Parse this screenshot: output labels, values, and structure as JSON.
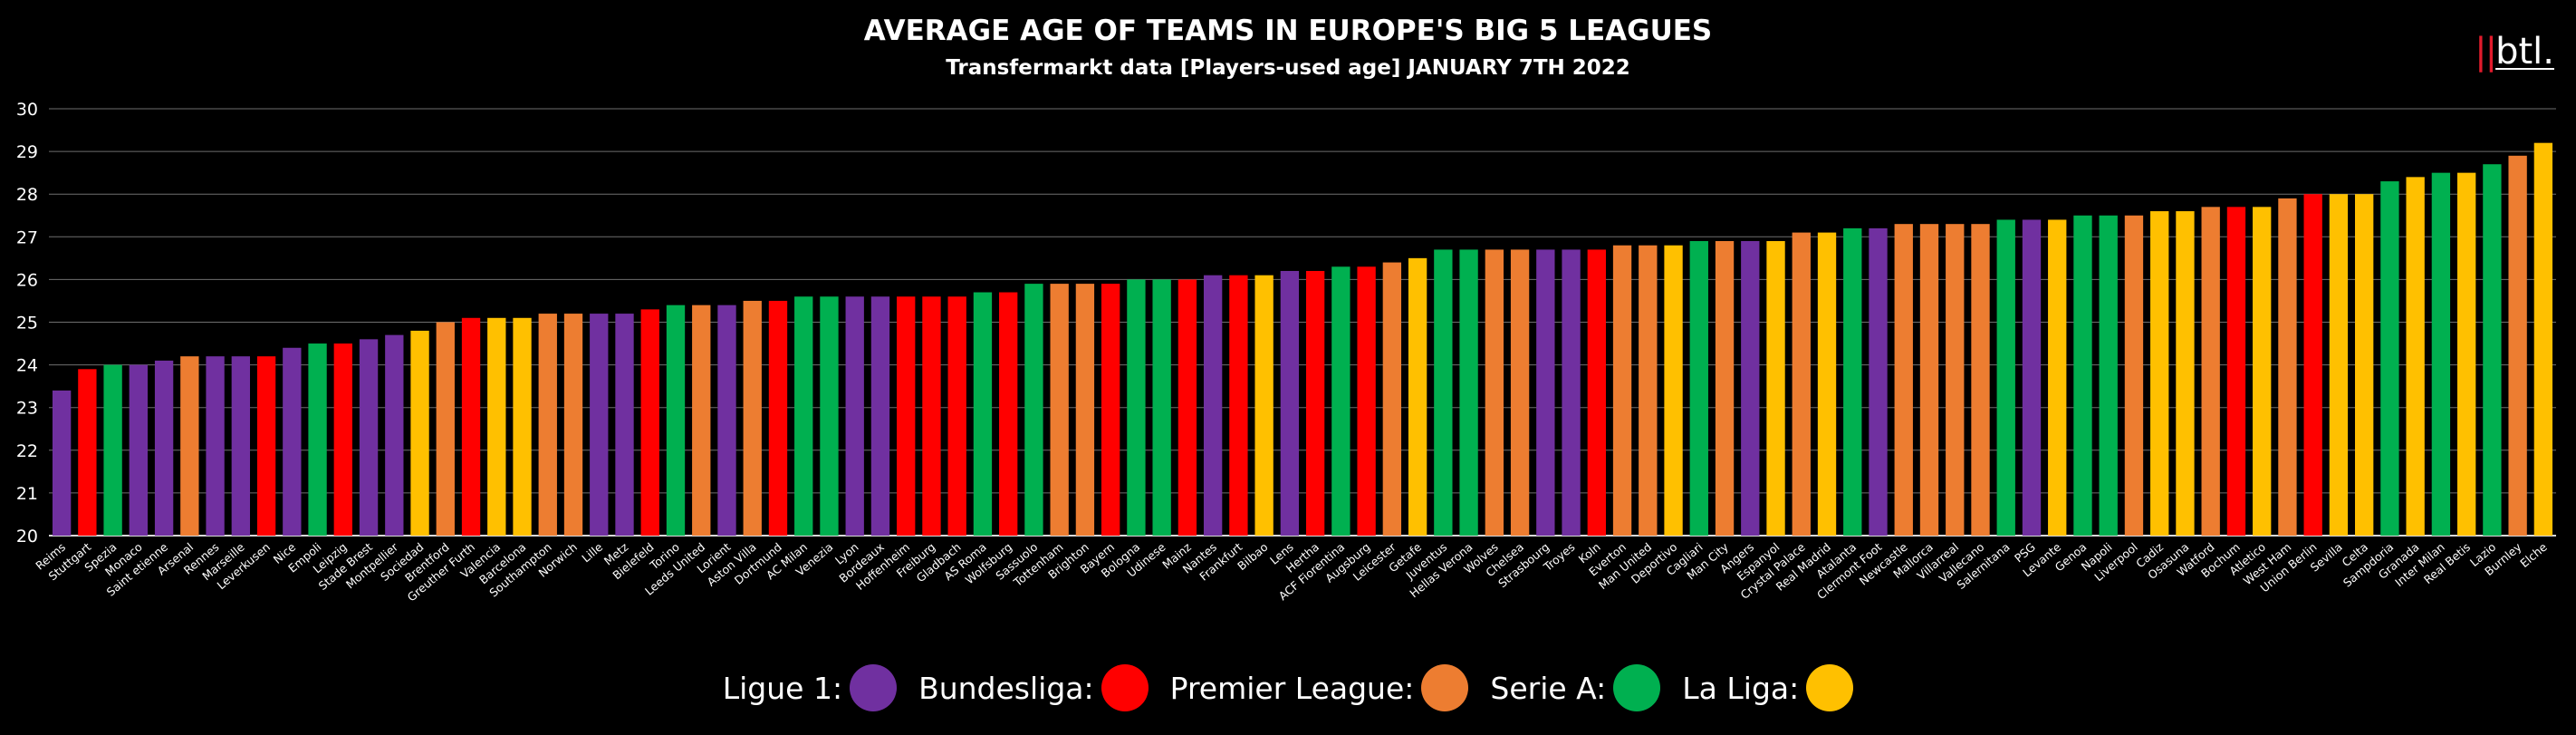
{
  "header": {
    "title": "AVERAGE AGE OF TEAMS IN EUROPE'S BIG 5 LEAGUES",
    "subtitle": "Transfermarkt data [Players-used age] JANUARY 7TH 2022",
    "logo_text": "btl."
  },
  "chart_data": {
    "type": "bar",
    "title": "AVERAGE AGE OF TEAMS IN EUROPE'S BIG 5 LEAGUES",
    "subtitle": "Transfermarkt data [Players-used age] JANUARY 7TH 2022",
    "xlabel": "",
    "ylabel": "",
    "ylim": [
      20,
      30
    ],
    "yticks": [
      20,
      21,
      22,
      23,
      24,
      25,
      26,
      27,
      28,
      29,
      30
    ],
    "grid": true,
    "legend_position": "bottom",
    "league_colors": {
      "Ligue 1": "#7030a0",
      "Bundesliga": "#ff0000",
      "Premier League": "#ed7d31",
      "Serie A": "#00b050",
      "La Liga": "#ffc000"
    },
    "legend": [
      {
        "label": "Ligue 1:",
        "league": "Ligue 1"
      },
      {
        "label": "Bundesliga:",
        "league": "Bundesliga"
      },
      {
        "label": "Premier League:",
        "league": "Premier League"
      },
      {
        "label": "Serie A:",
        "league": "Serie A"
      },
      {
        "label": "La Liga:",
        "league": "La Liga"
      }
    ],
    "categories": [
      "Reims",
      "Stuttgart",
      "Spezia",
      "Monaco",
      "Saint etienne",
      "Arsenal",
      "Rennes",
      "Marseille",
      "Leverkusen",
      "Nice",
      "Empoli",
      "Leipzig",
      "Stade Brest",
      "Montpellier",
      "Sociedad",
      "Brentford",
      "Greuther Furth",
      "Valencia",
      "Barcelona",
      "Southampton",
      "Norwich",
      "Lille",
      "Metz",
      "Bielefeld",
      "Torino",
      "Leeds United",
      "Lorient",
      "Aston Villa",
      "Dortmund",
      "AC Milan",
      "Venezia",
      "Lyon",
      "Bordeaux",
      "Hoffenheim",
      "Freiburg",
      "Gladbach",
      "AS Roma",
      "Wolfsburg",
      "Sassuolo",
      "Tottenham",
      "Brighton",
      "Bayern",
      "Bologna",
      "Udinese",
      "Mainz",
      "Nantes",
      "Frankfurt",
      "Bilbao",
      "Lens",
      "Hertha",
      "ACF Fiorentina",
      "Augsburg",
      "Leicester",
      "Getafe",
      "Juventus",
      "Hellas Verona",
      "Wolves",
      "Chelsea",
      "Strasbourg",
      "Troyes",
      "Koln",
      "Everton",
      "Man United",
      "Deportivo",
      "Cagliari",
      "Man City",
      "Angers",
      "Espanyol",
      "Crystal Palace",
      "Real Madrid",
      "Atalanta",
      "Clermont Foot",
      "Newcastle",
      "Mallorca",
      "Villarreal",
      "Vallecano",
      "Salernitana",
      "PSG",
      "Levante",
      "Genoa",
      "Napoli",
      "Liverpool",
      "Cadiz",
      "Osasuna",
      "Watford",
      "Bochum",
      "Atletico",
      "West Ham",
      "Union Berlin",
      "Sevilla",
      "Celta",
      "Sampdoria",
      "Granada",
      "Inter Milan",
      "Real Betis",
      "Lazio",
      "Burnley",
      "Elche"
    ],
    "leagues": [
      "Ligue 1",
      "Bundesliga",
      "Serie A",
      "Ligue 1",
      "Ligue 1",
      "Premier League",
      "Ligue 1",
      "Ligue 1",
      "Bundesliga",
      "Ligue 1",
      "Serie A",
      "Bundesliga",
      "Ligue 1",
      "Ligue 1",
      "La Liga",
      "Premier League",
      "Bundesliga",
      "La Liga",
      "La Liga",
      "Premier League",
      "Premier League",
      "Ligue 1",
      "Ligue 1",
      "Bundesliga",
      "Serie A",
      "Premier League",
      "Ligue 1",
      "Premier League",
      "Bundesliga",
      "Serie A",
      "Serie A",
      "Ligue 1",
      "Ligue 1",
      "Bundesliga",
      "Bundesliga",
      "Bundesliga",
      "Serie A",
      "Bundesliga",
      "Serie A",
      "Premier League",
      "Premier League",
      "Bundesliga",
      "Serie A",
      "Serie A",
      "Bundesliga",
      "Ligue 1",
      "Bundesliga",
      "La Liga",
      "Ligue 1",
      "Bundesliga",
      "Serie A",
      "Bundesliga",
      "Premier League",
      "La Liga",
      "Serie A",
      "Serie A",
      "Premier League",
      "Premier League",
      "Ligue 1",
      "Ligue 1",
      "Bundesliga",
      "Premier League",
      "Premier League",
      "La Liga",
      "Serie A",
      "Premier League",
      "Ligue 1",
      "La Liga",
      "Premier League",
      "La Liga",
      "Serie A",
      "Ligue 1",
      "Premier League",
      "Premier League",
      "Premier League",
      "Premier League",
      "Serie A",
      "Ligue 1",
      "La Liga",
      "Serie A",
      "Serie A",
      "Premier League",
      "La Liga",
      "La Liga",
      "Premier League",
      "Bundesliga",
      "La Liga",
      "Premier League",
      "Bundesliga",
      "La Liga",
      "La Liga",
      "Serie A",
      "La Liga",
      "Serie A",
      "La Liga",
      "Serie A",
      "Premier League",
      "La Liga"
    ],
    "values": [
      23.4,
      23.9,
      24.0,
      24.0,
      24.1,
      24.2,
      24.2,
      24.2,
      24.2,
      24.4,
      24.5,
      24.5,
      24.6,
      24.7,
      24.8,
      25.0,
      25.1,
      25.1,
      25.1,
      25.2,
      25.2,
      25.2,
      25.2,
      25.3,
      25.4,
      25.4,
      25.4,
      25.5,
      25.5,
      25.6,
      25.6,
      25.6,
      25.6,
      25.6,
      25.6,
      25.6,
      25.7,
      25.7,
      25.9,
      25.9,
      25.9,
      25.9,
      26.0,
      26.0,
      26.0,
      26.1,
      26.1,
      26.1,
      26.2,
      26.2,
      26.3,
      26.3,
      26.4,
      26.5,
      26.7,
      26.7,
      26.7,
      26.7,
      26.7,
      26.7,
      26.7,
      26.8,
      26.8,
      26.8,
      26.9,
      26.9,
      26.9,
      26.9,
      27.1,
      27.1,
      27.2,
      27.2,
      27.3,
      27.3,
      27.3,
      27.3,
      27.4,
      27.4,
      27.4,
      27.5,
      27.5,
      27.5,
      27.6,
      27.6,
      27.7,
      27.7,
      27.7,
      27.9,
      28.0,
      28.0,
      28.0,
      28.3,
      28.4,
      28.5,
      28.5,
      28.7,
      28.9,
      29.2
    ]
  }
}
